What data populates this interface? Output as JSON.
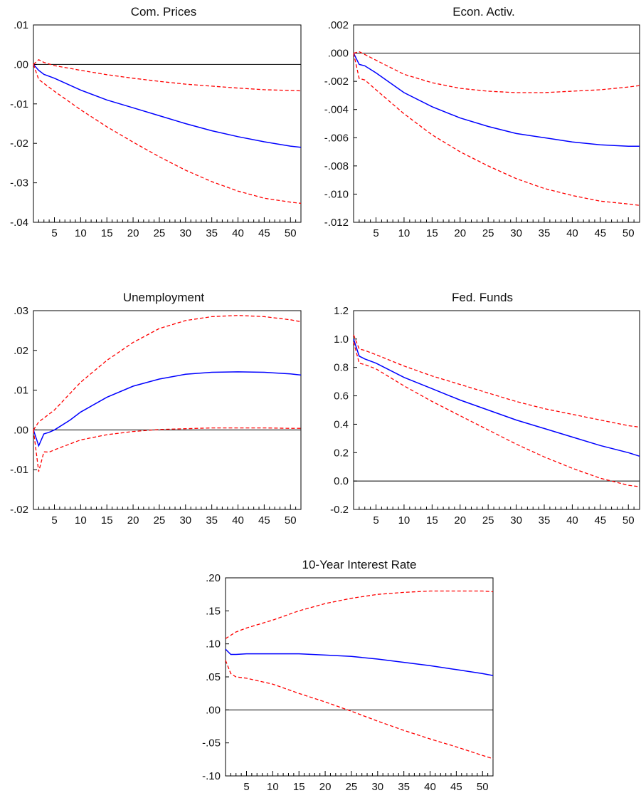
{
  "colors": {
    "point": "#0000ff",
    "bands": "#ff0000",
    "axis": "#000000"
  },
  "chart_data": [
    {
      "type": "line",
      "title": "Com. Prices",
      "xlim": [
        1,
        52
      ],
      "ylim": [
        -0.04,
        0.01
      ],
      "xticks": [
        5,
        10,
        15,
        20,
        25,
        30,
        35,
        40,
        45,
        50
      ],
      "xtick_labels": [
        "5",
        "10",
        "15",
        "20",
        "25",
        "30",
        "35",
        "40",
        "45",
        "50"
      ],
      "yticks": [
        0.01,
        0.0,
        -0.01,
        -0.02,
        -0.03,
        -0.04
      ],
      "ytick_labels": [
        ".01",
        ".00",
        "-.01",
        "-.02",
        "-.03",
        "-.04"
      ],
      "zero_line": 0,
      "series": [
        {
          "role": "point",
          "style": "solid",
          "x": [
            1,
            2,
            3,
            5,
            10,
            15,
            20,
            25,
            30,
            35,
            40,
            45,
            50,
            52
          ],
          "y": [
            0.0,
            -0.0015,
            -0.0025,
            -0.0035,
            -0.0065,
            -0.009,
            -0.011,
            -0.013,
            -0.015,
            -0.0168,
            -0.0183,
            -0.0196,
            -0.0207,
            -0.021
          ]
        },
        {
          "role": "upper",
          "style": "dashed",
          "x": [
            1,
            2,
            3,
            5,
            10,
            15,
            20,
            25,
            30,
            35,
            40,
            45,
            50,
            52
          ],
          "y": [
            0.0,
            0.0012,
            0.0005,
            -0.0003,
            -0.0015,
            -0.0026,
            -0.0035,
            -0.0043,
            -0.005,
            -0.0055,
            -0.006,
            -0.0064,
            -0.0066,
            -0.0067
          ]
        },
        {
          "role": "lower",
          "style": "dashed",
          "x": [
            1,
            2,
            3,
            5,
            10,
            15,
            20,
            25,
            30,
            35,
            40,
            45,
            50,
            52
          ],
          "y": [
            0.0,
            -0.0038,
            -0.0048,
            -0.0068,
            -0.0115,
            -0.0158,
            -0.0197,
            -0.0234,
            -0.0268,
            -0.0297,
            -0.0321,
            -0.0339,
            -0.0349,
            -0.0352
          ]
        }
      ]
    },
    {
      "type": "line",
      "title": "Econ. Activ.",
      "xlim": [
        1,
        52
      ],
      "ylim": [
        -0.012,
        0.002
      ],
      "xticks": [
        5,
        10,
        15,
        20,
        25,
        30,
        35,
        40,
        45,
        50
      ],
      "xtick_labels": [
        "5",
        "10",
        "15",
        "20",
        "25",
        "30",
        "35",
        "40",
        "45",
        "50"
      ],
      "yticks": [
        0.002,
        0.0,
        -0.002,
        -0.004,
        -0.006,
        -0.008,
        -0.01,
        -0.012
      ],
      "ytick_labels": [
        ".002",
        ".000",
        "-.002",
        "-.004",
        "-.006",
        "-.008",
        "-.010",
        "-.012"
      ],
      "zero_line": 0,
      "series": [
        {
          "role": "point",
          "style": "solid",
          "x": [
            1,
            2,
            3,
            5,
            10,
            15,
            20,
            25,
            30,
            35,
            40,
            45,
            50,
            52
          ],
          "y": [
            0.0,
            -0.0008,
            -0.0009,
            -0.0014,
            -0.0028,
            -0.0038,
            -0.0046,
            -0.0052,
            -0.0057,
            -0.006,
            -0.0063,
            -0.0065,
            -0.0066,
            -0.0066
          ]
        },
        {
          "role": "upper",
          "style": "dashed",
          "x": [
            1,
            2,
            3,
            5,
            10,
            15,
            20,
            25,
            30,
            35,
            40,
            45,
            50,
            52
          ],
          "y": [
            0.0,
            0.0001,
            -0.0001,
            -0.0005,
            -0.0015,
            -0.0021,
            -0.0025,
            -0.0027,
            -0.0028,
            -0.0028,
            -0.0027,
            -0.0026,
            -0.0024,
            -0.0023
          ]
        },
        {
          "role": "lower",
          "style": "dashed",
          "x": [
            1,
            2,
            3,
            5,
            10,
            15,
            20,
            25,
            30,
            35,
            40,
            45,
            50,
            52
          ],
          "y": [
            0.0,
            -0.0018,
            -0.0019,
            -0.0026,
            -0.0043,
            -0.0058,
            -0.007,
            -0.008,
            -0.0089,
            -0.0096,
            -0.0101,
            -0.0105,
            -0.0107,
            -0.0108
          ]
        }
      ]
    },
    {
      "type": "line",
      "title": "Unemployment",
      "xlim": [
        1,
        52
      ],
      "ylim": [
        -0.02,
        0.03
      ],
      "xticks": [
        5,
        10,
        15,
        20,
        25,
        30,
        35,
        40,
        45,
        50
      ],
      "xtick_labels": [
        "5",
        "10",
        "15",
        "20",
        "25",
        "30",
        "35",
        "40",
        "45",
        "50"
      ],
      "yticks": [
        0.03,
        0.02,
        0.01,
        0.0,
        -0.01,
        -0.02
      ],
      "ytick_labels": [
        ".03",
        ".02",
        ".01",
        ".00",
        "-.01",
        "-.02"
      ],
      "zero_line": 0,
      "series": [
        {
          "role": "point",
          "style": "solid",
          "x": [
            1,
            2,
            3,
            4,
            5,
            8,
            10,
            15,
            20,
            25,
            30,
            35,
            40,
            45,
            50,
            52
          ],
          "y": [
            0.0,
            -0.004,
            -0.001,
            -0.0006,
            0.0,
            0.0025,
            0.0045,
            0.0082,
            0.011,
            0.0128,
            0.014,
            0.0145,
            0.0146,
            0.0145,
            0.0141,
            0.0138
          ]
        },
        {
          "role": "upper",
          "style": "dashed",
          "x": [
            1,
            2,
            3,
            5,
            10,
            15,
            20,
            25,
            30,
            35,
            40,
            45,
            50,
            52
          ],
          "y": [
            0.0,
            0.002,
            0.003,
            0.005,
            0.012,
            0.0175,
            0.022,
            0.0255,
            0.0275,
            0.0285,
            0.0288,
            0.0285,
            0.0277,
            0.0272
          ]
        },
        {
          "role": "lower",
          "style": "dashed",
          "x": [
            1,
            2,
            3,
            4,
            5,
            10,
            15,
            20,
            25,
            30,
            35,
            40,
            45,
            50,
            52
          ],
          "y": [
            0.0,
            -0.0105,
            -0.0055,
            -0.0056,
            -0.005,
            -0.0025,
            -0.0012,
            -0.0004,
            0.0001,
            0.0003,
            0.0005,
            0.0005,
            0.0005,
            0.0004,
            0.0004
          ]
        }
      ]
    },
    {
      "type": "line",
      "title": "Fed. Funds",
      "xlim": [
        1,
        52
      ],
      "ylim": [
        -0.2,
        1.2
      ],
      "xticks": [
        5,
        10,
        15,
        20,
        25,
        30,
        35,
        40,
        45,
        50
      ],
      "xtick_labels": [
        "5",
        "10",
        "15",
        "20",
        "25",
        "30",
        "35",
        "40",
        "45",
        "50"
      ],
      "yticks": [
        1.2,
        1.0,
        0.8,
        0.6,
        0.4,
        0.2,
        0.0,
        -0.2
      ],
      "ytick_labels": [
        "1.2",
        "1.0",
        "0.8",
        "0.6",
        "0.4",
        "0.2",
        "0.0",
        "-0.2"
      ],
      "zero_line": 0,
      "series": [
        {
          "role": "point",
          "style": "solid",
          "x": [
            1,
            2,
            3,
            5,
            10,
            15,
            20,
            25,
            30,
            35,
            40,
            45,
            50,
            52
          ],
          "y": [
            1.0,
            0.88,
            0.86,
            0.83,
            0.73,
            0.65,
            0.57,
            0.5,
            0.43,
            0.37,
            0.31,
            0.25,
            0.2,
            0.175
          ]
        },
        {
          "role": "upper",
          "style": "dashed",
          "x": [
            1,
            2,
            3,
            5,
            10,
            15,
            20,
            25,
            30,
            35,
            40,
            45,
            50,
            52
          ],
          "y": [
            1.03,
            0.93,
            0.92,
            0.89,
            0.81,
            0.74,
            0.68,
            0.62,
            0.56,
            0.51,
            0.47,
            0.43,
            0.39,
            0.38
          ]
        },
        {
          "role": "lower",
          "style": "dashed",
          "x": [
            1,
            2,
            3,
            5,
            10,
            15,
            20,
            25,
            30,
            35,
            40,
            45,
            50,
            52
          ],
          "y": [
            0.98,
            0.83,
            0.82,
            0.79,
            0.67,
            0.56,
            0.46,
            0.36,
            0.26,
            0.17,
            0.09,
            0.02,
            -0.03,
            -0.04
          ]
        }
      ]
    },
    {
      "type": "line",
      "title": "10-Year Interest Rate",
      "xlim": [
        1,
        52
      ],
      "ylim": [
        -0.1,
        0.2
      ],
      "xticks": [
        5,
        10,
        15,
        20,
        25,
        30,
        35,
        40,
        45,
        50
      ],
      "xtick_labels": [
        "5",
        "10",
        "15",
        "20",
        "25",
        "30",
        "35",
        "40",
        "45",
        "50"
      ],
      "yticks": [
        0.2,
        0.15,
        0.1,
        0.05,
        0.0,
        -0.05,
        -0.1
      ],
      "ytick_labels": [
        ".20",
        ".15",
        ".10",
        ".05",
        ".00",
        "-.05",
        "-.10"
      ],
      "zero_line": 0,
      "series": [
        {
          "role": "point",
          "style": "solid",
          "x": [
            1,
            2,
            3,
            5,
            10,
            15,
            20,
            25,
            30,
            35,
            40,
            45,
            50,
            52
          ],
          "y": [
            0.092,
            0.084,
            0.084,
            0.085,
            0.085,
            0.085,
            0.083,
            0.081,
            0.077,
            0.072,
            0.067,
            0.061,
            0.055,
            0.052
          ]
        },
        {
          "role": "upper",
          "style": "dashed",
          "x": [
            1,
            2,
            3,
            5,
            10,
            15,
            20,
            25,
            30,
            35,
            40,
            45,
            50,
            52
          ],
          "y": [
            0.108,
            0.113,
            0.118,
            0.124,
            0.136,
            0.15,
            0.161,
            0.169,
            0.175,
            0.178,
            0.18,
            0.18,
            0.18,
            0.179
          ]
        },
        {
          "role": "lower",
          "style": "dashed",
          "x": [
            1,
            2,
            3,
            5,
            10,
            15,
            20,
            25,
            30,
            35,
            40,
            45,
            50,
            52
          ],
          "y": [
            0.075,
            0.055,
            0.05,
            0.048,
            0.039,
            0.025,
            0.012,
            -0.002,
            -0.017,
            -0.031,
            -0.044,
            -0.056,
            -0.069,
            -0.074
          ]
        }
      ]
    }
  ]
}
